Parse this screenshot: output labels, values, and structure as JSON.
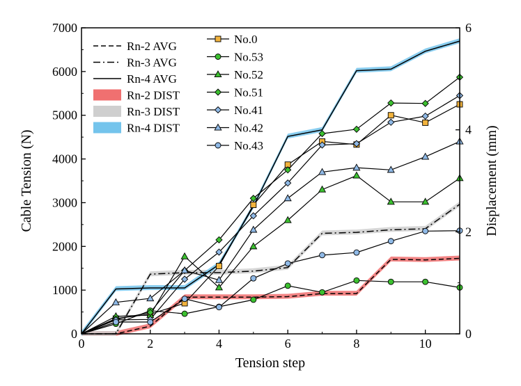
{
  "chart_data": {
    "type": "line",
    "x_axis": {
      "label": "Tension step",
      "range": [
        0,
        11
      ],
      "ticks": [
        0,
        2,
        4,
        6,
        8,
        10
      ]
    },
    "y_left": {
      "label": "Cable Tension (N)",
      "range": [
        0,
        7000
      ],
      "ticks": [
        0,
        1000,
        2000,
        3000,
        4000,
        5000,
        6000,
        7000
      ]
    },
    "y_right": {
      "label": "Displacement (mm)",
      "range": [
        0,
        6
      ],
      "ticks": [
        0,
        2,
        4,
        6
      ]
    },
    "legend_left": {
      "position": "top-left",
      "entries": [
        {
          "label": "Rn-2 AVG",
          "style": "dash"
        },
        {
          "label": "Rn-3 AVG",
          "style": "dashdot"
        },
        {
          "label": "Rn-4 AVG",
          "style": "solid"
        },
        {
          "label": "Rn-2 DIST",
          "color": "#f07070"
        },
        {
          "label": "Rn-3 DIST",
          "color": "#cfcfcf"
        },
        {
          "label": "Rn-4 DIST",
          "color": "#74c4ec"
        }
      ]
    },
    "avg_series": [
      {
        "name": "Rn-2 AVG",
        "axis": "right",
        "dash": "7,4",
        "band_color": "#f07070",
        "x": [
          0,
          1,
          2,
          3,
          4,
          5,
          6,
          7,
          8,
          9,
          10,
          11
        ],
        "values": [
          0,
          0,
          0.15,
          0.72,
          0.72,
          0.72,
          0.73,
          0.79,
          0.79,
          1.46,
          1.45,
          1.48
        ]
      },
      {
        "name": "Rn-3 AVG",
        "axis": "right",
        "dash": "10,4,2,4",
        "band_color": "#cfcfcf",
        "x": [
          0,
          1,
          2,
          3,
          4,
          5,
          6,
          7,
          8,
          9,
          10,
          11
        ],
        "values": [
          0,
          0,
          1.17,
          1.2,
          1.2,
          1.23,
          1.3,
          1.97,
          1.99,
          2.04,
          2.06,
          2.54
        ]
      },
      {
        "name": "Rn-4 AVG",
        "axis": "right",
        "dash": "",
        "band_color": "#74c4ec",
        "x": [
          0,
          1,
          2,
          3,
          4,
          5,
          6,
          7,
          8,
          9,
          10,
          11
        ],
        "values": [
          0,
          0.88,
          0.9,
          0.9,
          1.36,
          2.5,
          3.87,
          4.0,
          5.16,
          5.19,
          5.54,
          5.74
        ]
      }
    ],
    "marker_series": [
      {
        "name": "No.0",
        "marker": "square",
        "color": "#f2b33d",
        "x": [
          0,
          1,
          2,
          3,
          4,
          5,
          6,
          7,
          8,
          9,
          10,
          11
        ],
        "values": [
          0,
          350,
          450,
          700,
          1550,
          2950,
          3870,
          4400,
          4330,
          5000,
          4830,
          5250
        ]
      },
      {
        "name": "No.53",
        "marker": "circle",
        "color": "#3cc030",
        "x": [
          0,
          1,
          2,
          3,
          4,
          5,
          6,
          7,
          8,
          9,
          10,
          11
        ],
        "values": [
          0,
          230,
          530,
          460,
          620,
          780,
          1100,
          950,
          1220,
          1190,
          1190,
          1060
        ]
      },
      {
        "name": "No.52",
        "marker": "triangle",
        "color": "#3cc030",
        "x": [
          0,
          1,
          2,
          3,
          4,
          5,
          6,
          7,
          8,
          9,
          10,
          11
        ],
        "values": [
          0,
          400,
          430,
          1770,
          1060,
          2000,
          2600,
          3300,
          3620,
          3020,
          3020,
          3560
        ]
      },
      {
        "name": "No.51",
        "marker": "diamond",
        "color": "#3cc030",
        "x": [
          0,
          1,
          2,
          3,
          4,
          5,
          6,
          7,
          8,
          9,
          10,
          11
        ],
        "values": [
          0,
          330,
          490,
          1450,
          2150,
          3100,
          3750,
          4580,
          4680,
          5280,
          5270,
          5870
        ]
      },
      {
        "name": "No.41",
        "marker": "diamond",
        "color": "#8fb9e6",
        "x": [
          0,
          1,
          2,
          3,
          4,
          5,
          6,
          7,
          8,
          9,
          10,
          11
        ],
        "values": [
          0,
          320,
          330,
          1250,
          1870,
          2700,
          3450,
          4320,
          4350,
          4840,
          4980,
          5450
        ]
      },
      {
        "name": "No.42",
        "marker": "triangle",
        "color": "#8fb9e6",
        "x": [
          0,
          1,
          2,
          3,
          4,
          5,
          6,
          7,
          8,
          9,
          10,
          11
        ],
        "values": [
          0,
          720,
          810,
          1450,
          1230,
          2380,
          3100,
          3700,
          3800,
          3750,
          4050,
          4400
        ]
      },
      {
        "name": "No.43",
        "marker": "circle",
        "color": "#8fb9e6",
        "x": [
          0,
          1,
          2,
          3,
          4,
          5,
          6,
          7,
          8,
          9,
          10,
          11
        ],
        "values": [
          0,
          270,
          270,
          800,
          610,
          1270,
          1610,
          1800,
          1860,
          2120,
          2350,
          2360
        ]
      }
    ]
  }
}
